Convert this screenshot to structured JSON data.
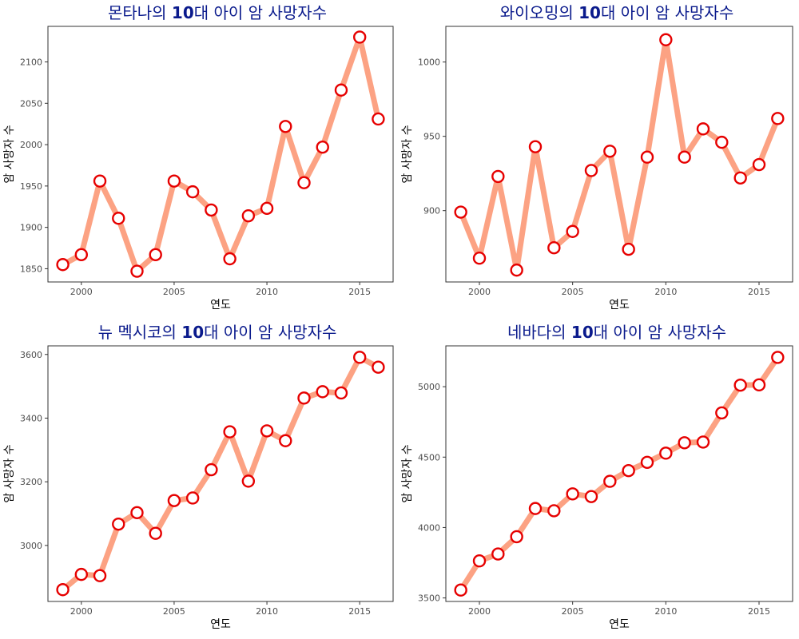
{
  "style": {
    "line_color": "#fca283",
    "marker_edge": "#e60000",
    "marker_fill": "#ffffff",
    "title_color": "#0a1a8c"
  },
  "chart_data": [
    {
      "type": "line",
      "title_parts": [
        "몬타나의 ",
        "10",
        "대 아이 암 사망자수"
      ],
      "xlabel": "연도",
      "ylabel": "암 사망자 수",
      "xlim": [
        1998.2,
        2016.8
      ],
      "ylim": [
        1834,
        2143
      ],
      "xticks": [
        2000,
        2005,
        2010,
        2015
      ],
      "yticks": [
        1850,
        1900,
        1950,
        2000,
        2050,
        2100
      ],
      "grid": true,
      "x": [
        1999,
        2000,
        2001,
        2002,
        2003,
        2004,
        2005,
        2006,
        2007,
        2008,
        2009,
        2010,
        2011,
        2012,
        2013,
        2014,
        2015,
        2016
      ],
      "y": [
        1855,
        1867,
        1956,
        1911,
        1847,
        1867,
        1956,
        1943,
        1921,
        1862,
        1914,
        1923,
        2022,
        1954,
        1997,
        2066,
        2130,
        2031
      ]
    },
    {
      "type": "line",
      "title_parts": [
        "와이오밍의 ",
        "10",
        "대 아이 암 사망자수"
      ],
      "xlabel": "연도",
      "ylabel": "암 사망자 수",
      "xlim": [
        1998.2,
        2016.8
      ],
      "ylim": [
        852,
        1024
      ],
      "xticks": [
        2000,
        2005,
        2010,
        2015
      ],
      "yticks": [
        900,
        950,
        1000
      ],
      "grid": true,
      "x": [
        1999,
        2000,
        2001,
        2002,
        2003,
        2004,
        2005,
        2006,
        2007,
        2008,
        2009,
        2010,
        2011,
        2012,
        2013,
        2014,
        2015,
        2016
      ],
      "y": [
        899,
        868,
        923,
        860,
        943,
        875,
        886,
        927,
        940,
        874,
        936,
        1015,
        936,
        955,
        946,
        922,
        931,
        962
      ]
    },
    {
      "type": "line",
      "title_parts": [
        "뉴 멕시코의 ",
        "10",
        "대 아이 암 사망자수"
      ],
      "xlabel": "연도",
      "ylabel": "암 사망자 수",
      "xlim": [
        1998.2,
        2016.8
      ],
      "ylim": [
        2824,
        3627
      ],
      "xticks": [
        2000,
        2005,
        2010,
        2015
      ],
      "yticks": [
        3000,
        3200,
        3400,
        3600
      ],
      "grid": true,
      "x": [
        1999,
        2000,
        2001,
        2002,
        2003,
        2004,
        2005,
        2006,
        2007,
        2008,
        2009,
        2010,
        2011,
        2012,
        2013,
        2014,
        2015,
        2016
      ],
      "y": [
        2861,
        2909,
        2905,
        3067,
        3103,
        3038,
        3141,
        3149,
        3238,
        3357,
        3202,
        3360,
        3329,
        3463,
        3483,
        3479,
        3591,
        3560
      ]
    },
    {
      "type": "line",
      "title_parts": [
        "네바다의 ",
        "10",
        "대 아이 암 사망자수"
      ],
      "xlabel": "연도",
      "ylabel": "암 사망자 수",
      "xlim": [
        1998.2,
        2016.8
      ],
      "ylim": [
        3475,
        5290
      ],
      "xticks": [
        2000,
        2005,
        2010,
        2015
      ],
      "yticks": [
        3500,
        4000,
        4500,
        5000
      ],
      "grid": true,
      "x": [
        1999,
        2000,
        2001,
        2002,
        2003,
        2004,
        2005,
        2006,
        2007,
        2008,
        2009,
        2010,
        2011,
        2012,
        2013,
        2014,
        2015,
        2016
      ],
      "y": [
        3556,
        3763,
        3812,
        3935,
        4135,
        4119,
        4239,
        4220,
        4328,
        4404,
        4463,
        4528,
        4602,
        4607,
        4814,
        5011,
        5013,
        5208
      ]
    }
  ]
}
